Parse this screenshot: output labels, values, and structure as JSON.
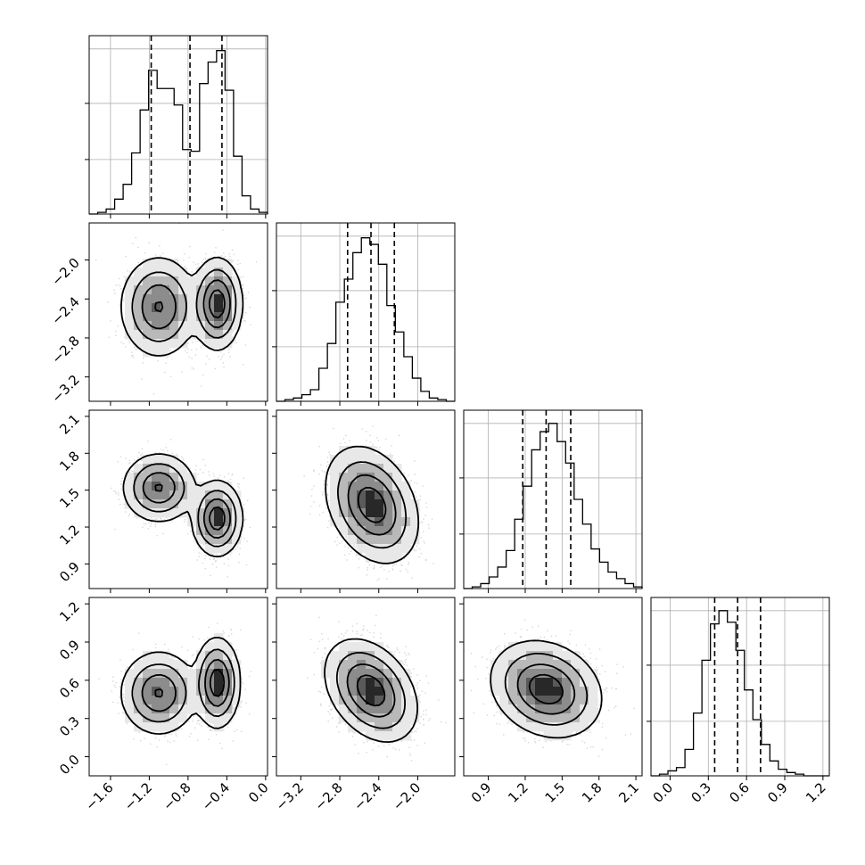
{
  "chart_data": {
    "type": "corner",
    "grid": true,
    "parameters": [
      {
        "range": [
          -1.82,
          0.02
        ],
        "ticks": [
          "−1.6",
          "−1.2",
          "−0.8",
          "−0.4",
          "0.0"
        ],
        "tick_values": [
          -1.6,
          -1.2,
          -0.8,
          -0.4,
          0.0
        ],
        "quantiles": [
          -1.18,
          -0.78,
          -0.45
        ],
        "hist_peak": 1.0,
        "hist": [
          0.0,
          0.01,
          0.03,
          0.09,
          0.18,
          0.37,
          0.63,
          0.87,
          0.76,
          0.76,
          0.66,
          0.39,
          0.38,
          0.79,
          0.92,
          0.99,
          0.75,
          0.35,
          0.11,
          0.03,
          0.01
        ]
      },
      {
        "range": [
          -3.45,
          -1.62
        ],
        "ticks": [
          "−3.2",
          "−2.8",
          "−2.4",
          "−2.0"
        ],
        "tick_values": [
          -3.2,
          -2.8,
          -2.4,
          -2.0
        ],
        "quantiles": [
          -2.72,
          -2.48,
          -2.24
        ],
        "hist": [
          0.0,
          0.01,
          0.02,
          0.04,
          0.07,
          0.2,
          0.35,
          0.6,
          0.74,
          0.9,
          0.99,
          0.95,
          0.83,
          0.58,
          0.42,
          0.27,
          0.14,
          0.06,
          0.02,
          0.01,
          0.0
        ]
      },
      {
        "range": [
          0.7,
          2.15
        ],
        "ticks": [
          "0.9",
          "1.2",
          "1.5",
          "1.8",
          "2.1"
        ],
        "tick_values": [
          0.9,
          1.2,
          1.5,
          1.8,
          2.1
        ],
        "quantiles": [
          1.18,
          1.37,
          1.57
        ],
        "hist": [
          0.0,
          0.01,
          0.03,
          0.07,
          0.13,
          0.23,
          0.42,
          0.62,
          0.84,
          0.95,
          1.0,
          0.89,
          0.76,
          0.54,
          0.39,
          0.24,
          0.16,
          0.1,
          0.06,
          0.03,
          0.01
        ]
      },
      {
        "range": [
          -0.15,
          1.25
        ],
        "ticks": [
          "0.0",
          "0.3",
          "0.6",
          "0.9",
          "1.2"
        ],
        "tick_values": [
          0.0,
          0.3,
          0.6,
          0.9,
          1.2
        ],
        "quantiles": [
          0.35,
          0.53,
          0.71
        ],
        "hist": [
          0.0,
          0.01,
          0.03,
          0.05,
          0.16,
          0.38,
          0.7,
          0.92,
          1.0,
          0.93,
          0.76,
          0.52,
          0.34,
          0.19,
          0.09,
          0.04,
          0.02,
          0.01,
          0.0,
          0.0,
          0.0
        ]
      }
    ],
    "hist_yticks": [
      0.33,
      0.67
    ],
    "pairs": [
      {
        "row": 1,
        "col": 0,
        "modes": [
          {
            "x": -1.1,
            "y": -2.48,
            "sx": 0.17,
            "sy": 0.22,
            "w": 1.0
          },
          {
            "x": -0.5,
            "y": -2.45,
            "sx": 0.11,
            "sy": 0.2,
            "w": 1.25
          }
        ],
        "levels": [
          0.06,
          0.22,
          0.48,
          0.78
        ]
      },
      {
        "row": 2,
        "col": 0,
        "modes": [
          {
            "x": -1.1,
            "y": 1.52,
            "sx": 0.16,
            "sy": 0.12,
            "w": 1.0
          },
          {
            "x": -0.5,
            "y": 1.27,
            "sx": 0.11,
            "sy": 0.13,
            "w": 1.25
          }
        ],
        "levels": [
          0.06,
          0.22,
          0.48,
          0.78
        ]
      },
      {
        "row": 3,
        "col": 0,
        "modes": [
          {
            "x": -1.1,
            "y": 0.5,
            "sx": 0.17,
            "sy": 0.14,
            "w": 1.0
          },
          {
            "x": -0.5,
            "y": 0.58,
            "sx": 0.1,
            "sy": 0.15,
            "w": 1.25
          }
        ],
        "levels": [
          0.06,
          0.22,
          0.48,
          0.78
        ]
      },
      {
        "row": 2,
        "col": 1,
        "modes": [
          {
            "x": -2.47,
            "y": 1.38,
            "sx": 0.2,
            "sy": 0.2,
            "w": 1.0,
            "rho": -0.3
          }
        ],
        "levels": [
          0.06,
          0.22,
          0.48,
          0.78
        ]
      },
      {
        "row": 3,
        "col": 1,
        "modes": [
          {
            "x": -2.48,
            "y": 0.52,
            "sx": 0.2,
            "sy": 0.17,
            "w": 1.0,
            "rho": -0.35
          }
        ],
        "levels": [
          0.06,
          0.22,
          0.48,
          0.78
        ]
      },
      {
        "row": 3,
        "col": 2,
        "modes": [
          {
            "x": 1.37,
            "y": 0.53,
            "sx": 0.19,
            "sy": 0.16,
            "w": 1.0,
            "rho": -0.2
          }
        ],
        "levels": [
          0.06,
          0.22,
          0.48,
          0.78
        ]
      }
    ]
  }
}
